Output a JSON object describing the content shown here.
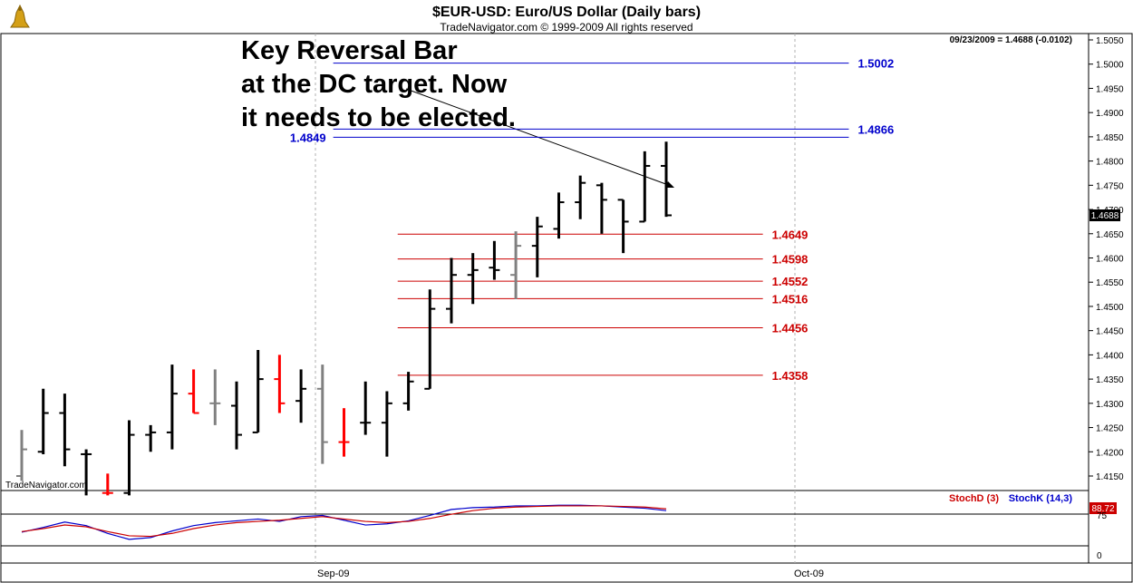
{
  "header": {
    "title": "$EUR-USD:  Euro/US Dollar  (Daily bars)",
    "subtitle": "TradeNavigator.com © 1999-2009 All rights reserved",
    "quote": "09/23/2009 = 1.4688 (-0.0102)",
    "watermark": "TradeNavigator.com"
  },
  "annotation": {
    "lines": [
      "Key Reversal Bar",
      "at the DC target. Now",
      "it needs to be elected."
    ]
  },
  "price_tag": "1.4688",
  "x_labels": [
    "Sep-09",
    "Oct-09"
  ],
  "y_ticks": [
    "1.5050",
    "1.5000",
    "1.4950",
    "1.4900",
    "1.4850",
    "1.4800",
    "1.4750",
    "1.4700",
    "1.4650",
    "1.4600",
    "1.4550",
    "1.4500",
    "1.4450",
    "1.4400",
    "1.4350",
    "1.4300",
    "1.4250",
    "1.4200",
    "1.4150"
  ],
  "indicator": {
    "legend_d": "StochD (3)",
    "legend_k": "StochK (14,3)",
    "value_tag": "88.72",
    "ticks": [
      "75",
      "0"
    ]
  },
  "colors": {
    "bar_up": "#000000",
    "bar_down": "#ff0000",
    "bar_inside": "#808080",
    "target_blue": "#0000cc",
    "target_red": "#cc0000",
    "stoch_d": "#cc0000",
    "stoch_k": "#0000cc"
  },
  "chart_data": {
    "type": "ohlc",
    "title": "$EUR-USD:  Euro/US Dollar  (Daily bars)",
    "ylim": [
      1.411,
      1.507
    ],
    "bars": [
      {
        "o": 1.415,
        "h": 1.4245,
        "l": 1.414,
        "c": 1.4205,
        "color": "gray"
      },
      {
        "o": 1.42,
        "h": 1.433,
        "l": 1.4195,
        "c": 1.428,
        "color": "black"
      },
      {
        "o": 1.428,
        "h": 1.432,
        "l": 1.417,
        "c": 1.4205,
        "color": "black"
      },
      {
        "o": 1.4195,
        "h": 1.4205,
        "l": 1.411,
        "c": 1.4195,
        "color": "black"
      },
      {
        "o": 1.4115,
        "h": 1.4155,
        "l": 1.411,
        "c": 1.4115,
        "color": "red"
      },
      {
        "o": 1.4115,
        "h": 1.4265,
        "l": 1.411,
        "c": 1.4235,
        "color": "black"
      },
      {
        "o": 1.4235,
        "h": 1.4255,
        "l": 1.42,
        "c": 1.424,
        "color": "black"
      },
      {
        "o": 1.424,
        "h": 1.438,
        "l": 1.4205,
        "c": 1.432,
        "color": "black"
      },
      {
        "o": 1.432,
        "h": 1.437,
        "l": 1.428,
        "c": 1.428,
        "color": "red"
      },
      {
        "o": 1.43,
        "h": 1.437,
        "l": 1.4255,
        "c": 1.43,
        "color": "gray"
      },
      {
        "o": 1.4295,
        "h": 1.4345,
        "l": 1.4205,
        "c": 1.4235,
        "color": "black"
      },
      {
        "o": 1.424,
        "h": 1.441,
        "l": 1.424,
        "c": 1.435,
        "color": "black"
      },
      {
        "o": 1.435,
        "h": 1.44,
        "l": 1.428,
        "c": 1.43,
        "color": "red"
      },
      {
        "o": 1.4305,
        "h": 1.437,
        "l": 1.426,
        "c": 1.433,
        "color": "black"
      },
      {
        "o": 1.433,
        "h": 1.438,
        "l": 1.4175,
        "c": 1.422,
        "color": "gray"
      },
      {
        "o": 1.422,
        "h": 1.429,
        "l": 1.419,
        "c": 1.422,
        "color": "red"
      },
      {
        "o": 1.426,
        "h": 1.4345,
        "l": 1.4235,
        "c": 1.426,
        "color": "black"
      },
      {
        "o": 1.426,
        "h": 1.4325,
        "l": 1.419,
        "c": 1.43,
        "color": "black"
      },
      {
        "o": 1.43,
        "h": 1.4365,
        "l": 1.4285,
        "c": 1.4345,
        "color": "black"
      },
      {
        "o": 1.433,
        "h": 1.4535,
        "l": 1.433,
        "c": 1.4495,
        "color": "black"
      },
      {
        "o": 1.4495,
        "h": 1.46,
        "l": 1.4465,
        "c": 1.4565,
        "color": "black"
      },
      {
        "o": 1.4565,
        "h": 1.461,
        "l": 1.4505,
        "c": 1.4575,
        "color": "black"
      },
      {
        "o": 1.458,
        "h": 1.4635,
        "l": 1.4555,
        "c": 1.4575,
        "color": "black"
      },
      {
        "o": 1.4565,
        "h": 1.4655,
        "l": 1.4515,
        "c": 1.4625,
        "color": "gray"
      },
      {
        "o": 1.4625,
        "h": 1.4685,
        "l": 1.456,
        "c": 1.4665,
        "color": "black"
      },
      {
        "o": 1.466,
        "h": 1.4735,
        "l": 1.464,
        "c": 1.4715,
        "color": "black"
      },
      {
        "o": 1.4715,
        "h": 1.477,
        "l": 1.468,
        "c": 1.4755,
        "color": "black"
      },
      {
        "o": 1.475,
        "h": 1.4755,
        "l": 1.465,
        "c": 1.472,
        "color": "black"
      },
      {
        "o": 1.472,
        "h": 1.472,
        "l": 1.461,
        "c": 1.4675,
        "color": "black"
      },
      {
        "o": 1.4675,
        "h": 1.482,
        "l": 1.4675,
        "c": 1.479,
        "color": "black"
      },
      {
        "o": 1.479,
        "h": 1.484,
        "l": 1.4685,
        "c": 1.4688,
        "color": "black"
      }
    ],
    "target_lines": [
      {
        "value": 1.5002,
        "label": "1.5002",
        "color": "blue",
        "x_from_bar": 14.5,
        "x_to_bar": 38.5,
        "label_side": "right"
      },
      {
        "value": 1.4866,
        "label": "1.4866",
        "color": "blue",
        "x_from_bar": 14.5,
        "x_to_bar": 38.5,
        "label_side": "right"
      },
      {
        "value": 1.4849,
        "label": "1.4849",
        "color": "blue",
        "x_from_bar": 14.5,
        "x_to_bar": 38.5,
        "label_side": "left"
      },
      {
        "value": 1.4649,
        "label": "1.4649",
        "color": "red",
        "x_from_bar": 17.5,
        "x_to_bar": 34.5,
        "label_side": "right"
      },
      {
        "value": 1.4598,
        "label": "1.4598",
        "color": "red",
        "x_from_bar": 17.5,
        "x_to_bar": 34.5,
        "label_side": "right"
      },
      {
        "value": 1.4552,
        "label": "1.4552",
        "color": "red",
        "x_from_bar": 17.5,
        "x_to_bar": 34.5,
        "label_side": "right"
      },
      {
        "value": 1.4516,
        "label": "1.4516",
        "color": "red",
        "x_from_bar": 17.5,
        "x_to_bar": 34.5,
        "label_side": "right"
      },
      {
        "value": 1.4456,
        "label": "1.4456",
        "color": "red",
        "x_from_bar": 17.5,
        "x_to_bar": 34.5,
        "label_side": "right"
      },
      {
        "value": 1.4358,
        "label": "1.4358",
        "color": "red",
        "x_from_bar": 17.5,
        "x_to_bar": 34.5,
        "label_side": "right"
      }
    ],
    "stoch": {
      "ylim": [
        0,
        100
      ],
      "d": [
        45,
        50,
        56,
        53,
        45,
        38,
        37,
        42,
        50,
        56,
        60,
        62,
        64,
        67,
        70,
        66,
        62,
        60,
        62,
        67,
        74,
        80,
        84,
        86,
        87,
        88,
        88,
        88,
        87,
        86,
        83
      ],
      "k": [
        44,
        52,
        61,
        55,
        42,
        32,
        35,
        46,
        55,
        60,
        63,
        66,
        62,
        70,
        72,
        64,
        56,
        58,
        63,
        72,
        82,
        85,
        86,
        88,
        88,
        89,
        89,
        88,
        86,
        84,
        80
      ]
    }
  }
}
